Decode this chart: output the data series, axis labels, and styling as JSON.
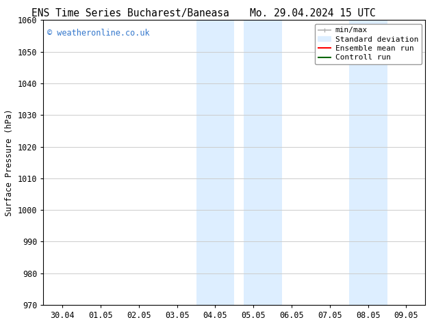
{
  "title_left": "ENS Time Series Bucharest/Baneasa",
  "title_right": "Mo. 29.04.2024 15 UTC",
  "ylabel": "Surface Pressure (hPa)",
  "ylim": [
    970,
    1060
  ],
  "yticks": [
    970,
    980,
    990,
    1000,
    1010,
    1020,
    1030,
    1040,
    1050,
    1060
  ],
  "xtick_labels": [
    "30.04",
    "01.05",
    "02.05",
    "03.05",
    "04.05",
    "05.05",
    "06.05",
    "07.05",
    "08.05",
    "09.05"
  ],
  "xtick_positions": [
    0,
    1,
    2,
    3,
    4,
    5,
    6,
    7,
    8,
    9
  ],
  "xlim": [
    -0.5,
    9.5
  ],
  "shaded_regions": [
    {
      "xmin": 3.5,
      "xmax": 4.5
    },
    {
      "xmin": 4.75,
      "xmax": 5.75
    },
    {
      "xmin": 7.5,
      "xmax": 8.5
    }
  ],
  "shaded_color": "#ddeeff",
  "watermark_text": "© weatheronline.co.uk",
  "watermark_color": "#3377cc",
  "background_color": "#ffffff",
  "legend_items": [
    {
      "label": "min/max",
      "color": "#b0b0b0",
      "lw": 1.2,
      "type": "hline_caps"
    },
    {
      "label": "Standard deviation",
      "color": "#ddeeff",
      "lw": 6,
      "type": "thick_line"
    },
    {
      "label": "Ensemble mean run",
      "color": "#ff0000",
      "lw": 1.5,
      "type": "line"
    },
    {
      "label": "Controll run",
      "color": "#006600",
      "lw": 1.5,
      "type": "line"
    }
  ],
  "grid_color": "#cccccc",
  "spine_color": "#000000",
  "tick_label_fontsize": 8.5,
  "title_fontsize": 10.5,
  "ylabel_fontsize": 8.5,
  "legend_fontsize": 8
}
